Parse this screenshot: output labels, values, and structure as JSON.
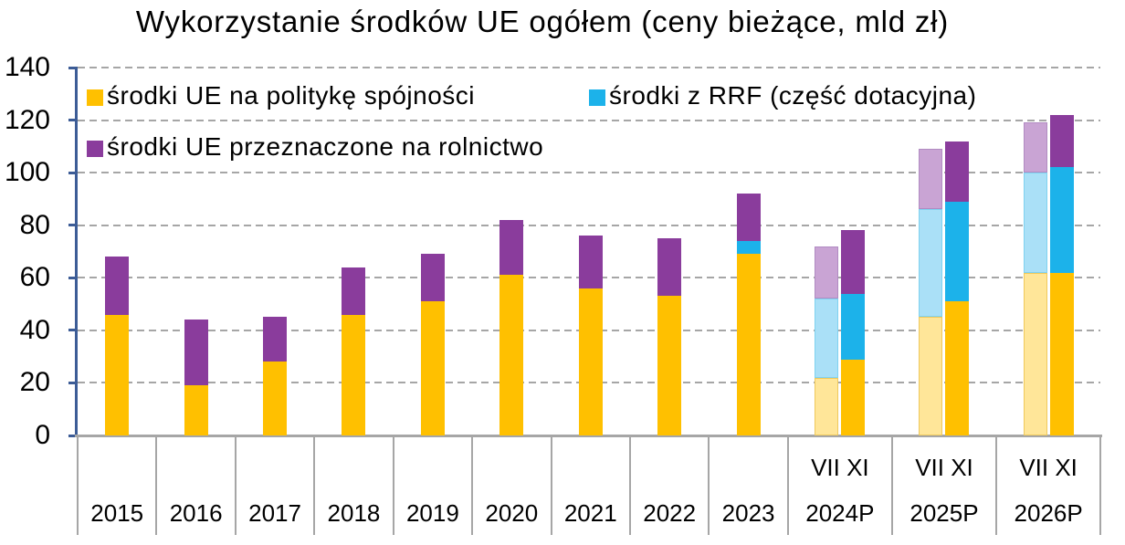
{
  "title": "Wykorzystanie środków UE ogółem (ceny bieżące, mld zł)",
  "colors": {
    "axis_blue": "#3C5C96",
    "grid_gray": "#A6A6A6",
    "cohesion_yellow": "#FFC000",
    "cohesion_pale": "#FFE699",
    "rrf_blue": "#1CB2EA",
    "rrf_pale": "#AAE0F7",
    "agriculture_purple": "#8A3C9C",
    "agriculture_pale": "#C9A4D4"
  },
  "chart_data": {
    "type": "bar",
    "stacked": true,
    "title": "Wykorzystanie środków UE ogółem (ceny bieżące, mld zł)",
    "xlabel": "",
    "ylabel": "",
    "ylim": [
      0,
      140
    ],
    "ytick_step": 20,
    "yticks": [
      0,
      20,
      40,
      60,
      80,
      100,
      120,
      140
    ],
    "grid": "dashed horizontal",
    "legend_position": "top-inside",
    "series": [
      {
        "name": "środki UE na politykę spójności",
        "color": "#FFC000",
        "pale": "#FFE699",
        "pale_border": "#EFC95C"
      },
      {
        "name": "środki z RRF (część dotacyjna)",
        "color": "#1CB2EA",
        "pale": "#AAE0F7",
        "pale_border": "#7FD2F0"
      },
      {
        "name": "środki UE przeznaczone na rolnictwo",
        "color": "#8A3C9C",
        "pale": "#C9A4D4",
        "pale_border": "#B18BC2"
      }
    ],
    "categories": [
      {
        "label": "2015",
        "bars": [
          {
            "variant": "solid",
            "values": [
              46,
              0,
              22
            ]
          }
        ]
      },
      {
        "label": "2016",
        "bars": [
          {
            "variant": "solid",
            "values": [
              19,
              0,
              25
            ]
          }
        ]
      },
      {
        "label": "2017",
        "bars": [
          {
            "variant": "solid",
            "values": [
              28,
              0,
              17
            ]
          }
        ]
      },
      {
        "label": "2018",
        "bars": [
          {
            "variant": "solid",
            "values": [
              46,
              0,
              18
            ]
          }
        ]
      },
      {
        "label": "2019",
        "bars": [
          {
            "variant": "solid",
            "values": [
              51,
              0,
              18
            ]
          }
        ]
      },
      {
        "label": "2020",
        "bars": [
          {
            "variant": "solid",
            "values": [
              61,
              0,
              21
            ]
          }
        ]
      },
      {
        "label": "2021",
        "bars": [
          {
            "variant": "solid",
            "values": [
              56,
              0,
              20
            ]
          }
        ]
      },
      {
        "label": "2022",
        "bars": [
          {
            "variant": "solid",
            "values": [
              53,
              0,
              22
            ]
          }
        ]
      },
      {
        "label": "2023",
        "bars": [
          {
            "variant": "solid",
            "values": [
              69,
              5,
              18
            ]
          }
        ]
      },
      {
        "label": "2024P",
        "bars": [
          {
            "period": "VII",
            "variant": "pale",
            "values": [
              22,
              30,
              20
            ]
          },
          {
            "period": "XI",
            "variant": "solid",
            "values": [
              29,
              25,
              24
            ]
          }
        ]
      },
      {
        "label": "2025P",
        "bars": [
          {
            "period": "VII",
            "variant": "pale",
            "values": [
              45,
              41,
              23
            ]
          },
          {
            "period": "XI",
            "variant": "solid",
            "values": [
              51,
              38,
              23
            ]
          }
        ]
      },
      {
        "label": "2026P",
        "bars": [
          {
            "period": "VII",
            "variant": "pale",
            "values": [
              62,
              38,
              19
            ]
          },
          {
            "period": "XI",
            "variant": "solid",
            "values": [
              62,
              40,
              20
            ]
          }
        ]
      }
    ]
  },
  "legend": {
    "items": [
      {
        "label": "środki UE na politykę spójności",
        "series": 0
      },
      {
        "label": "środki z RRF (część dotacyjna)",
        "series": 1
      },
      {
        "label": "środki UE przeznaczone na rolnictwo",
        "series": 2
      }
    ]
  }
}
